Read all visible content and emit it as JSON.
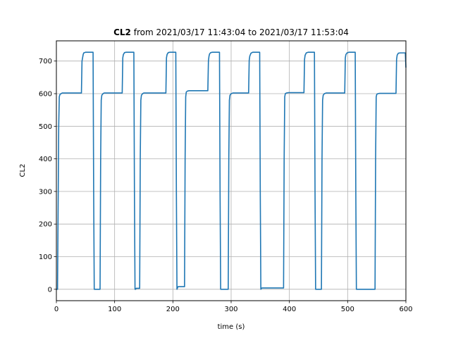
{
  "chart_data": {
    "type": "line",
    "title_bold": "CL2",
    "title_rest": " from 2021/03/17 11:43:04 to 2021/03/17 11:53:04",
    "xlabel": "time (s)",
    "ylabel": "CL2",
    "xlim": [
      0,
      600
    ],
    "ylim": [
      -35,
      762
    ],
    "xticks": [
      0,
      100,
      200,
      300,
      400,
      500,
      600
    ],
    "yticks": [
      0,
      100,
      200,
      300,
      400,
      500,
      600,
      700
    ],
    "grid": true,
    "series": [
      {
        "color": "#1f77b4",
        "x": [
          0,
          2,
          4,
          5,
          6,
          8,
          10,
          43,
          44,
          45,
          46,
          47,
          50,
          63,
          64,
          65,
          66,
          67,
          75,
          76,
          77,
          78,
          80,
          82,
          85,
          113,
          114,
          115,
          117,
          120,
          133,
          134,
          135,
          136,
          137,
          143,
          144,
          145,
          146,
          148,
          150,
          153,
          188,
          189,
          190,
          192,
          195,
          205,
          206,
          207,
          208,
          209,
          210,
          215,
          220,
          221,
          222,
          223,
          225,
          228,
          260,
          261,
          262,
          263,
          265,
          268,
          280,
          281,
          282,
          283,
          284,
          295,
          296,
          297,
          298,
          300,
          303,
          330,
          331,
          332,
          334,
          337,
          349,
          350,
          351,
          352,
          353,
          390,
          391,
          392,
          393,
          395,
          398,
          425,
          426,
          427,
          429,
          432,
          443,
          444,
          445,
          446,
          447,
          455,
          456,
          457,
          458,
          460,
          463,
          495,
          496,
          497,
          499,
          502,
          513,
          514,
          515,
          516,
          517,
          547,
          548,
          549,
          550,
          552,
          555,
          583,
          584,
          585,
          587,
          590,
          599,
          600
        ],
        "y": [
          0,
          0,
          500,
          590,
          597,
          600,
          602,
          602,
          700,
          710,
          720,
          725,
          727,
          727,
          300,
          0,
          0,
          0,
          0,
          400,
          580,
          595,
          600,
          602,
          602,
          602,
          710,
          720,
          726,
          727,
          727,
          300,
          0,
          0,
          3,
          3,
          400,
          580,
          595,
          600,
          602,
          602,
          602,
          710,
          720,
          726,
          727,
          727,
          300,
          0,
          5,
          8,
          8,
          8,
          8,
          400,
          590,
          605,
          608,
          609,
          609,
          700,
          715,
          722,
          726,
          727,
          727,
          300,
          0,
          0,
          0,
          0,
          400,
          580,
          595,
          600,
          602,
          602,
          702,
          715,
          724,
          727,
          727,
          300,
          0,
          3,
          4,
          4,
          400,
          590,
          600,
          602,
          603,
          603,
          705,
          718,
          725,
          727,
          727,
          300,
          0,
          0,
          0,
          0,
          400,
          580,
          595,
          600,
          602,
          602,
          710,
          720,
          725,
          727,
          727,
          300,
          0,
          0,
          0,
          0,
          400,
          590,
          598,
          600,
          601,
          601,
          705,
          718,
          724,
          725,
          725,
          680
        ]
      }
    ]
  }
}
